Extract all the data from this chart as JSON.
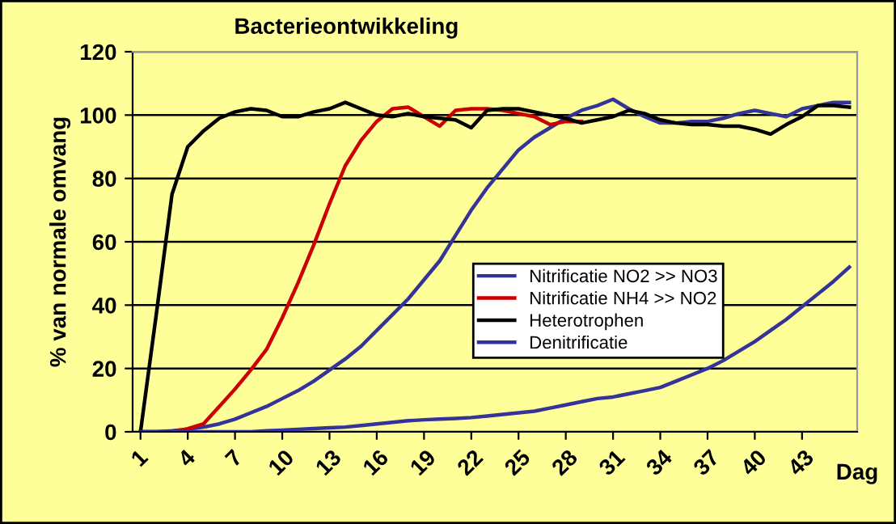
{
  "chart_data": {
    "type": "line",
    "title": "Bacterieontwikkeling",
    "ylabel": "% van normale omvang",
    "xlabel": "Dag",
    "x": [
      1,
      2,
      3,
      4,
      5,
      6,
      7,
      8,
      9,
      10,
      11,
      12,
      13,
      14,
      15,
      16,
      17,
      18,
      19,
      20,
      21,
      22,
      23,
      24,
      25,
      26,
      27,
      28,
      29,
      30,
      31,
      32,
      33,
      34,
      35,
      36,
      37,
      38,
      39,
      40,
      41,
      42,
      43,
      44,
      45,
      46
    ],
    "xlim": [
      0.5,
      46.5
    ],
    "xticks": [
      1,
      4,
      7,
      10,
      13,
      16,
      19,
      22,
      25,
      28,
      31,
      34,
      37,
      40,
      43
    ],
    "ylim": [
      0,
      120
    ],
    "yticks": [
      0,
      20,
      40,
      60,
      80,
      100,
      120
    ],
    "grid": "y",
    "legend": "right",
    "marker": "none",
    "line_style": "solid",
    "series": [
      {
        "name": "Nitrificatie NO2 >> NO3",
        "color": "#333399",
        "values": [
          0,
          0,
          0.3,
          0.8,
          1.5,
          2.5,
          4,
          6,
          8,
          10.5,
          13,
          16,
          19.5,
          23,
          27,
          32,
          37,
          42,
          48,
          54,
          62,
          70,
          77,
          83,
          89,
          93,
          96,
          99,
          101.5,
          103,
          105,
          102,
          99.5,
          97.5,
          97.5,
          98,
          98,
          99,
          100.5,
          101.5,
          100.5,
          99.5,
          102,
          103,
          104,
          104
        ]
      },
      {
        "name": "Nitrificatie NH4 >> NO2",
        "color": "#cc0000",
        "values": [
          0,
          0,
          0,
          1,
          2.5,
          8,
          13.5,
          19.5,
          26,
          36,
          47,
          59,
          72,
          84,
          92,
          98,
          102,
          102.5,
          99.5,
          96.5,
          101.5,
          102,
          102,
          101.5,
          100.5,
          99.5,
          97,
          98,
          98,
          null,
          null,
          null,
          null,
          null,
          null,
          null,
          null,
          null,
          null,
          null,
          null,
          null,
          null,
          null,
          null,
          null
        ]
      },
      {
        "name": "Heterotrophen",
        "color": "#000000",
        "values": [
          0,
          37,
          75,
          90,
          95,
          99,
          101,
          102,
          101.5,
          99.5,
          99.5,
          101,
          102,
          104,
          102,
          100,
          99.5,
          100.5,
          99.5,
          99,
          98.5,
          96,
          101.5,
          102,
          102,
          101,
          100,
          99,
          97.5,
          98.5,
          99.5,
          101.5,
          100.5,
          98.5,
          97.5,
          97,
          97,
          96.5,
          96.5,
          95.5,
          94,
          97,
          99.5,
          103,
          103,
          102.5
        ]
      },
      {
        "name": "Denitrificatie",
        "color": "#333399",
        "values": [
          0,
          0,
          0,
          0,
          0,
          0,
          0,
          0,
          0.3,
          0.5,
          0.8,
          1,
          1.3,
          1.5,
          2,
          2.5,
          3,
          3.5,
          3.8,
          4,
          4.2,
          4.5,
          5,
          5.5,
          6,
          6.5,
          7.5,
          8.5,
          9.5,
          10.5,
          11,
          12,
          13,
          14,
          16,
          18,
          20,
          22.5,
          25.5,
          28.5,
          32,
          35.5,
          39.5,
          43.5,
          47.5,
          52
        ]
      }
    ]
  }
}
